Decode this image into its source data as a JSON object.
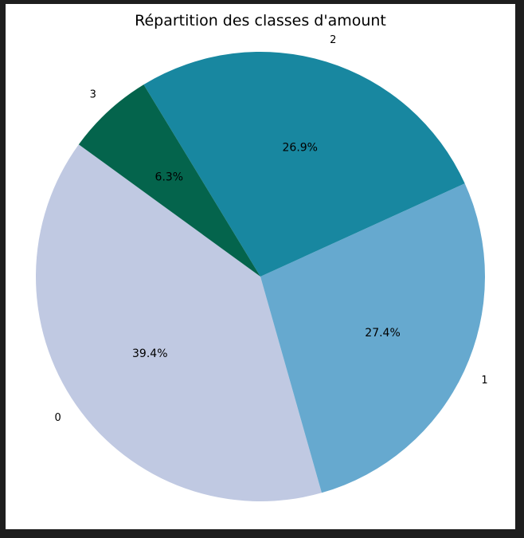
{
  "chart_data": {
    "type": "pie",
    "title": "Répartition des classes d'amount",
    "start_angle_deg": 144,
    "direction": "counterclockwise",
    "slices": [
      {
        "label": "0",
        "value": 39.4,
        "pct_label": "39.4%",
        "color": "#c0c9e2"
      },
      {
        "label": "1",
        "value": 27.4,
        "pct_label": "27.4%",
        "color": "#66a9cf"
      },
      {
        "label": "2",
        "value": 26.9,
        "pct_label": "26.9%",
        "color": "#1887a0"
      },
      {
        "label": "3",
        "value": 6.3,
        "pct_label": "6.3%",
        "color": "#04644c"
      }
    ]
  }
}
